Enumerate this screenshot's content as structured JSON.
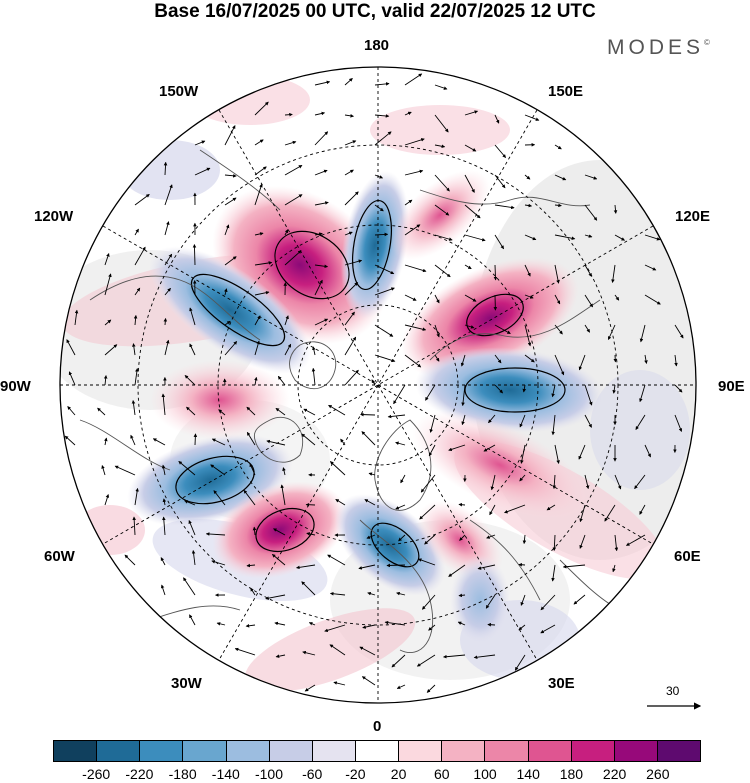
{
  "title": "Base 16/07/2025 00 UTC, valid 22/07/2025 12 UTC",
  "brand": "MODES",
  "brand_mark": "©",
  "longitude_labels": {
    "n180": "180",
    "w150": "150W",
    "e150": "150E",
    "w120": "120W",
    "e120": "120E",
    "w90": "90W",
    "e90": "90E",
    "w60": "60W",
    "e60": "60E",
    "w30": "30W",
    "e30": "30E",
    "s0": "0"
  },
  "wind_scale": {
    "label": "30",
    "icon": "arrow-right-icon"
  },
  "colorbar": {
    "ticks": [
      "-260",
      "-220",
      "-180",
      "-140",
      "-100",
      "-60",
      "-20",
      "20",
      "60",
      "100",
      "140",
      "180",
      "220",
      "260"
    ],
    "colors": [
      "#10405e",
      "#1f6b97",
      "#3c8dbd",
      "#69a6cf",
      "#9cbde0",
      "#c7cde7",
      "#e5e3f0",
      "#ffffff",
      "#fbd9df",
      "#f4b2c3",
      "#ec86a8",
      "#df5591",
      "#c71f7f",
      "#97097a",
      "#5e0a6f"
    ]
  }
}
